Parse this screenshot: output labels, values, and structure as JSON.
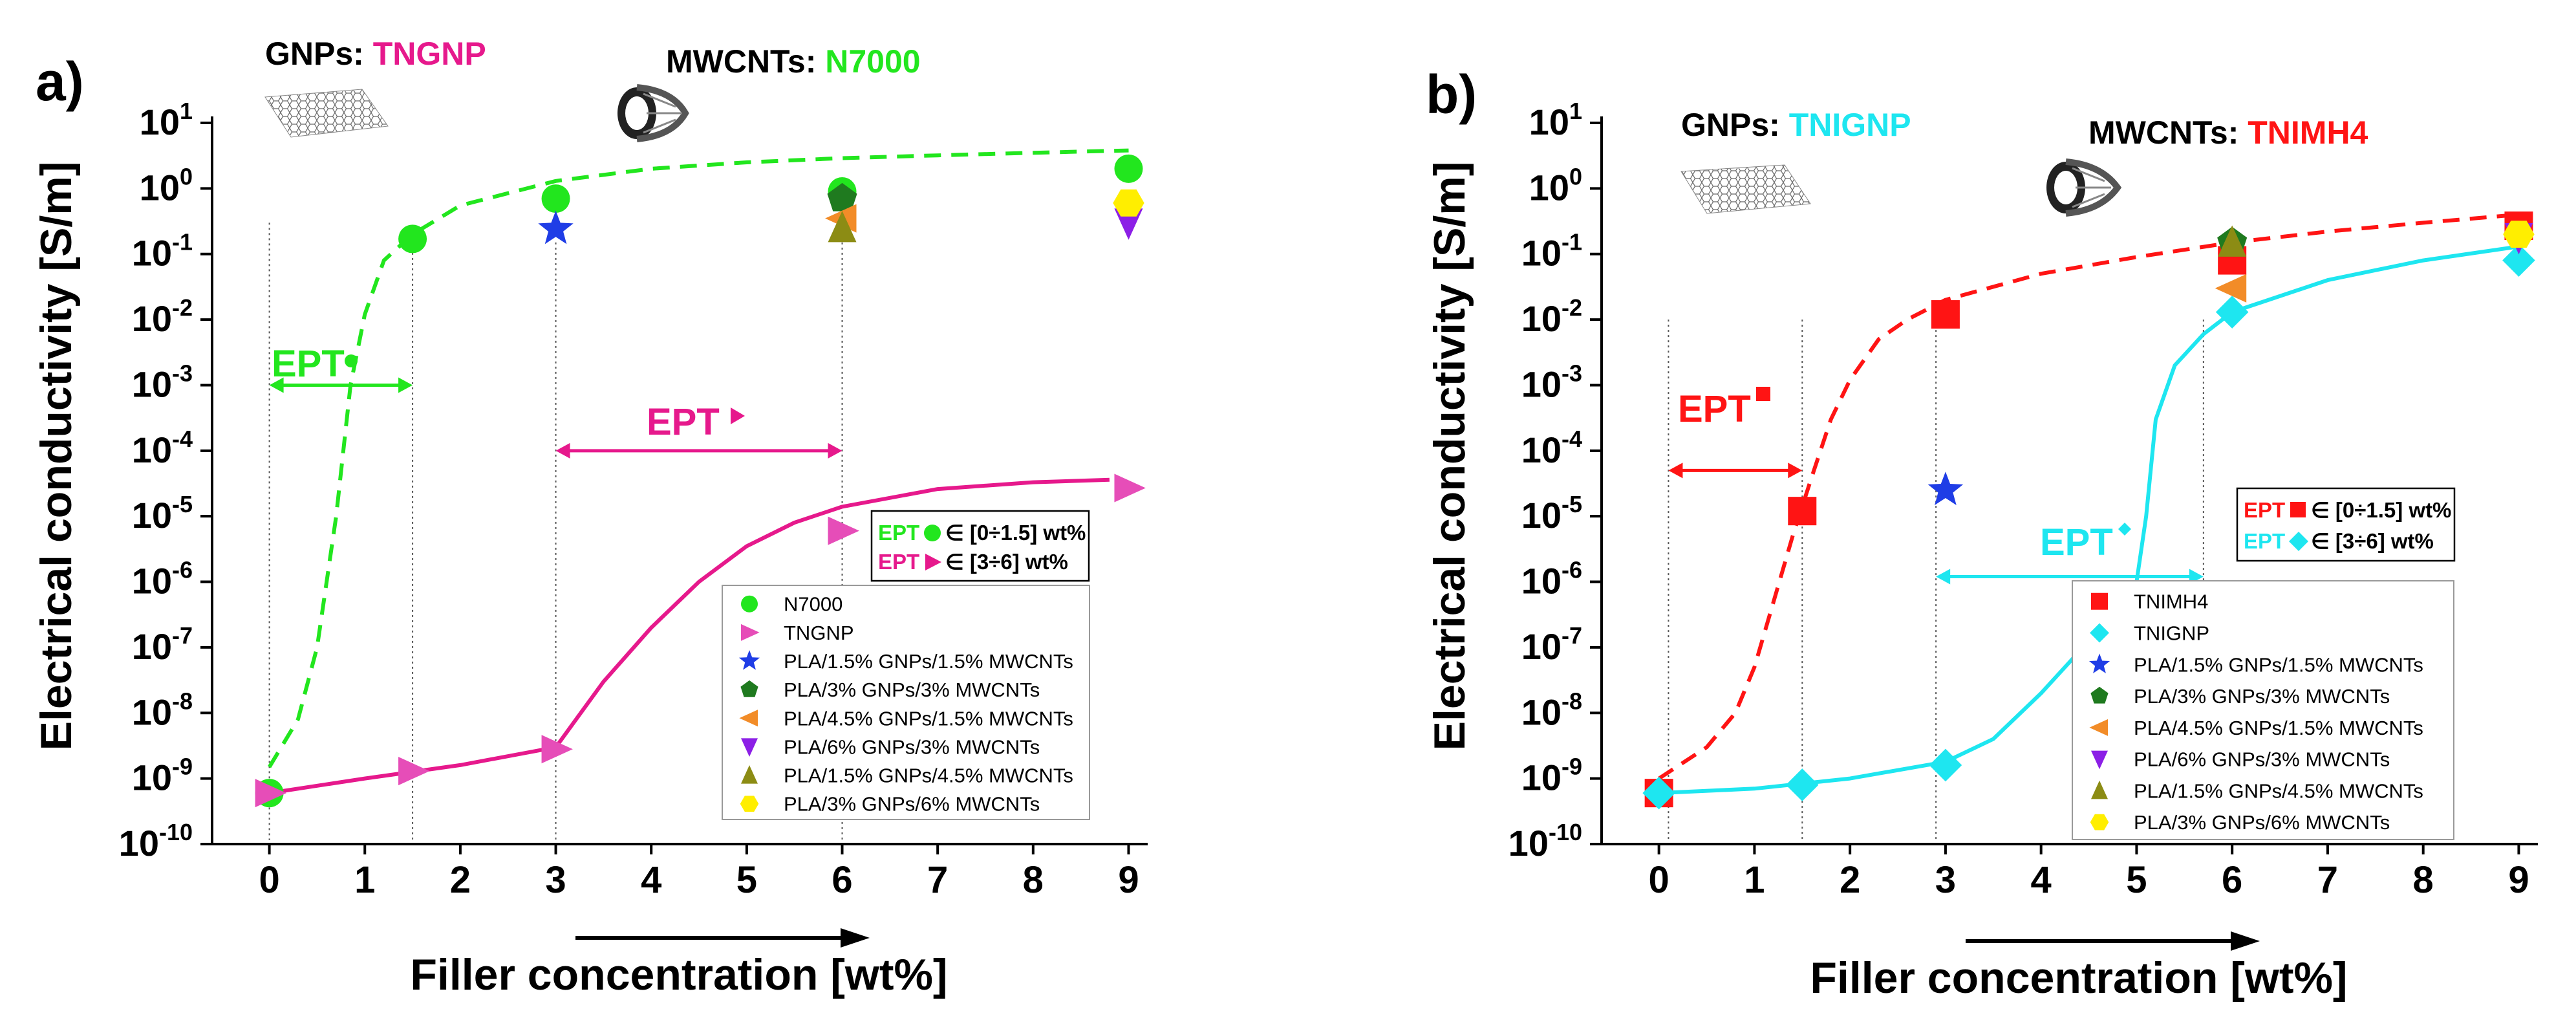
{
  "chart_data": [
    {
      "panel": "a)",
      "type": "scatter",
      "title_items": [
        {
          "prefix": "GNPs: ",
          "name": "TNGNP",
          "color": "#e6198c"
        },
        {
          "prefix": "MWCNTs: ",
          "name": "N7000",
          "color": "#22e61e"
        }
      ],
      "xlabel": "Filler concentration [wt%]",
      "ylabel": "Electrical conductivity [S/m]",
      "x_ticks": [
        0,
        1,
        2,
        3,
        4,
        5,
        6,
        7,
        8,
        9
      ],
      "y_exponents": [
        1,
        0,
        -1,
        -2,
        -3,
        -4,
        -5,
        -6,
        -7,
        -8,
        -9,
        -10
      ],
      "xlim": [
        -0.6,
        9.2
      ],
      "ylim_log10": [
        -10,
        1
      ],
      "threshold_lines_x": [
        0,
        1.5,
        3,
        6
      ],
      "series": [
        {
          "name": "N7000",
          "marker": "circle",
          "color": "#22e61e",
          "x": [
            0,
            1.5,
            3,
            6,
            9
          ],
          "y": [
            6e-10,
            0.17,
            0.7,
            0.9,
            2.0
          ]
        },
        {
          "name": "TNGNP",
          "marker": "triangle-right",
          "color": "#e64db8",
          "x": [
            0,
            1.5,
            3,
            6,
            9
          ],
          "y": [
            6e-10,
            1.3e-09,
            2.8e-09,
            6e-06,
            2.7e-05
          ]
        },
        {
          "name": "PLA/1.5% GNPs/1.5% MWCNTs",
          "marker": "star",
          "color": "#1f3de6",
          "x": [
            3
          ],
          "y": [
            0.24
          ]
        },
        {
          "name": "PLA/3% GNPs/3% MWCNTs",
          "marker": "pentagon",
          "color": "#1f7a1f",
          "x": [
            6
          ],
          "y": [
            0.7
          ]
        },
        {
          "name": "PLA/4.5% GNPs/1.5% MWCNTs",
          "marker": "triangle-left",
          "color": "#f28c28",
          "x": [
            6
          ],
          "y": [
            0.35
          ]
        },
        {
          "name": "PLA/6% GNPs/3% MWCNTs",
          "marker": "triangle-down",
          "color": "#8c1fe6",
          "x": [
            9
          ],
          "y": [
            0.3
          ]
        },
        {
          "name": "PLA/1.5% GNPs/4.5% MWCNTs",
          "marker": "triangle-up",
          "color": "#8c8c14",
          "x": [
            6
          ],
          "y": [
            0.25
          ]
        },
        {
          "name": "PLA/3% GNPs/6% MWCNTs",
          "marker": "hexagon",
          "color": "#ffee00",
          "x": [
            9
          ],
          "y": [
            0.6
          ]
        }
      ],
      "fit_curves": [
        {
          "name": "N7000 fit",
          "style": "dashed",
          "color": "#22e61e",
          "x": [
            0,
            0.3,
            0.5,
            0.7,
            0.85,
            1.0,
            1.2,
            1.5,
            2.0,
            3.0,
            4.0,
            5.0,
            6.0,
            7.0,
            8.0,
            9.0
          ],
          "y": [
            1.5e-09,
            8e-09,
            1e-07,
            1e-05,
            0.001,
            0.012,
            0.08,
            0.2,
            0.55,
            1.3,
            2.0,
            2.5,
            2.9,
            3.2,
            3.5,
            3.8
          ]
        },
        {
          "name": "TNGNP fit",
          "style": "solid",
          "color": "#e6198c",
          "x": [
            0,
            1.0,
            2.0,
            3.0,
            3.5,
            4.0,
            4.5,
            5.0,
            5.5,
            6.0,
            7.0,
            8.0,
            8.8
          ],
          "y": [
            6e-10,
            1e-09,
            1.6e-09,
            3e-09,
            3e-08,
            2e-07,
            1e-06,
            3.5e-06,
            8e-06,
            1.4e-05,
            2.6e-05,
            3.3e-05,
            3.6e-05
          ]
        }
      ],
      "ept_annotations": [
        {
          "label": "EPT",
          "symbol": "circle",
          "color": "#22e61e",
          "x_from": 0,
          "x_to": 1.5,
          "y_arrow": 0.001
        },
        {
          "label": "EPT",
          "symbol": "triangle-right",
          "color": "#e6198c",
          "x_from": 3,
          "x_to": 6,
          "y_arrow": 0.0001
        }
      ],
      "ept_box": [
        {
          "label": "EPT",
          "symbol": "circle",
          "color": "#22e61e",
          "text": "∈ [0÷1.5] wt%"
        },
        {
          "label": "EPT",
          "symbol": "triangle-right",
          "color": "#e6198c",
          "text": "∈ [3÷6] wt%"
        }
      ],
      "legend_position": "lower-right"
    },
    {
      "panel": "b)",
      "type": "scatter",
      "title_items": [
        {
          "prefix": "GNPs: ",
          "name": "TNIGNP",
          "color": "#1ee6f0"
        },
        {
          "prefix": "MWCNTs: ",
          "name": "TNIMH4",
          "color": "#ff1414"
        }
      ],
      "xlabel": "Filler concentration [wt%]",
      "ylabel": "Electrical conductivity [S/m]",
      "x_ticks": [
        0,
        1,
        2,
        3,
        4,
        5,
        6,
        7,
        8,
        9
      ],
      "y_exponents": [
        1,
        0,
        -1,
        -2,
        -3,
        -4,
        -5,
        -6,
        -7,
        -8,
        -9,
        -10
      ],
      "xlim": [
        -0.6,
        9.2
      ],
      "ylim_log10": [
        -10,
        1
      ],
      "threshold_lines_x": [
        0.1,
        1.5,
        2.9,
        5.7
      ],
      "series": [
        {
          "name": "TNIMH4",
          "marker": "square",
          "color": "#ff1414",
          "x": [
            0,
            1.5,
            3,
            6,
            9
          ],
          "y": [
            6e-10,
            1.2e-05,
            0.012,
            0.08,
            0.27
          ]
        },
        {
          "name": "TNIGNP",
          "marker": "diamond",
          "color": "#1ee6f0",
          "x": [
            0,
            1.5,
            3,
            6,
            9
          ],
          "y": [
            6e-10,
            8e-10,
            1.6e-09,
            0.013,
            0.08
          ]
        },
        {
          "name": "PLA/1.5% GNPs/1.5% MWCNTs",
          "marker": "star",
          "color": "#1f3de6",
          "x": [
            3
          ],
          "y": [
            2.5e-05
          ]
        },
        {
          "name": "PLA/3% GNPs/3% MWCNTs",
          "marker": "pentagon",
          "color": "#1f7a1f",
          "x": [
            6
          ],
          "y": [
            0.15
          ]
        },
        {
          "name": "PLA/4.5% GNPs/1.5% MWCNTs",
          "marker": "triangle-left",
          "color": "#f28c28",
          "x": [
            6
          ],
          "y": [
            0.03
          ]
        },
        {
          "name": "PLA/6% GNPs/3% MWCNTs",
          "marker": "triangle-down",
          "color": "#8c1fe6",
          "x": [
            9
          ],
          "y": [
            0.18
          ]
        },
        {
          "name": "PLA/1.5% GNPs/4.5% MWCNTs",
          "marker": "triangle-up",
          "color": "#8c8c14",
          "x": [
            6
          ],
          "y": [
            0.15
          ]
        },
        {
          "name": "PLA/3% GNPs/6% MWCNTs",
          "marker": "hexagon",
          "color": "#ffee00",
          "x": [
            9
          ],
          "y": [
            0.2
          ]
        }
      ],
      "fit_curves": [
        {
          "name": "TNIMH4 fit",
          "style": "dashed",
          "color": "#ff1414",
          "x": [
            0,
            0.5,
            0.8,
            1.0,
            1.2,
            1.4,
            1.6,
            1.8,
            2.0,
            2.3,
            2.6,
            3.0,
            4.0,
            5.0,
            6.0,
            7.0,
            8.0,
            9.0
          ],
          "y": [
            1e-09,
            3e-09,
            1e-08,
            5e-08,
            5e-07,
            5e-06,
            4e-05,
            0.0003,
            0.0012,
            0.005,
            0.01,
            0.02,
            0.05,
            0.09,
            0.15,
            0.22,
            0.3,
            0.4
          ]
        },
        {
          "name": "TNIGNP fit",
          "style": "solid",
          "color": "#1ee6f0",
          "x": [
            0,
            1.0,
            2.0,
            3.0,
            3.5,
            4.0,
            4.3,
            4.6,
            4.8,
            5.0,
            5.1,
            5.2,
            5.4,
            5.7,
            6.0,
            7.0,
            8.0,
            9.0
          ],
          "y": [
            6e-10,
            7e-10,
            1e-09,
            1.8e-09,
            4e-09,
            2e-08,
            6e-08,
            1.8e-07,
            4e-07,
            1e-06,
            1e-05,
            0.0003,
            0.002,
            0.006,
            0.013,
            0.04,
            0.08,
            0.13
          ]
        }
      ],
      "ept_annotations": [
        {
          "label": "EPT",
          "symbol": "square",
          "color": "#ff1414",
          "x_from": 0.1,
          "x_to": 1.5,
          "y_arrow": 5e-05
        },
        {
          "label": "EPT",
          "symbol": "diamond",
          "color": "#1ee6f0",
          "x_from": 2.9,
          "x_to": 5.7,
          "y_arrow": 1.2e-06
        }
      ],
      "ept_box": [
        {
          "label": "EPT",
          "symbol": "square",
          "color": "#ff1414",
          "text": "∈ [0÷1.5] wt%"
        },
        {
          "label": "EPT",
          "symbol": "diamond",
          "color": "#1ee6f0",
          "text": "∈ [3÷6] wt%"
        }
      ],
      "legend_position": "lower-right"
    }
  ]
}
